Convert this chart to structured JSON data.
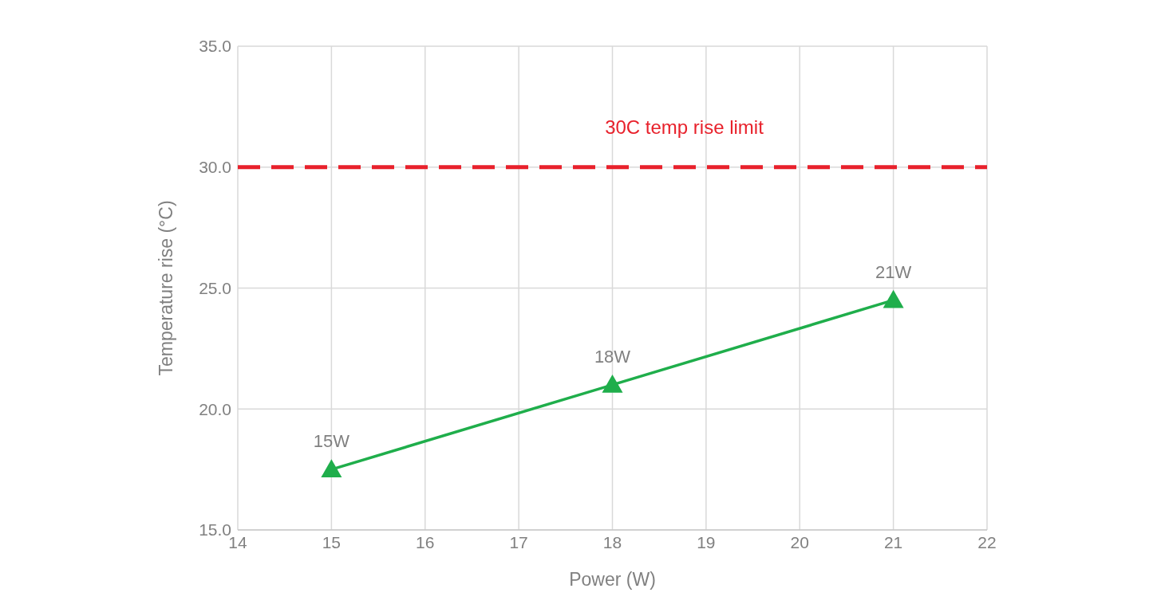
{
  "chart_data": {
    "type": "line",
    "xlabel": "Power (W)",
    "ylabel": "Temperature rise (°C)",
    "x": [
      15,
      18,
      21
    ],
    "series": [
      {
        "color": "#1fae4b",
        "values": [
          17.5,
          21.0,
          24.5
        ]
      }
    ],
    "xlim": [
      14,
      22
    ],
    "xticks": [
      14,
      15,
      16,
      17,
      18,
      19,
      20,
      21,
      22
    ],
    "ylim": [
      15,
      35
    ],
    "yticks": [
      {
        "value": 15,
        "label": "15.0"
      },
      {
        "value": 20,
        "label": "20.0"
      },
      {
        "value": 25,
        "label": "25.0"
      },
      {
        "value": 30,
        "label": "30.0"
      },
      {
        "value": 35,
        "label": "35.0"
      }
    ],
    "grid": true,
    "marker": "triangle",
    "line_style": "solid",
    "legend": false,
    "ref_lines": [
      {
        "axis": "y",
        "value": 30,
        "label": "30C temp rise limit",
        "color": "#e8212b",
        "line_style": "dashed"
      }
    ],
    "annotations": [
      {
        "text": "15W",
        "x": 15,
        "y": 17.5
      },
      {
        "text": "18W",
        "x": 18,
        "y": 21.0
      },
      {
        "text": "21W",
        "x": 21,
        "y": 24.5
      }
    ]
  }
}
